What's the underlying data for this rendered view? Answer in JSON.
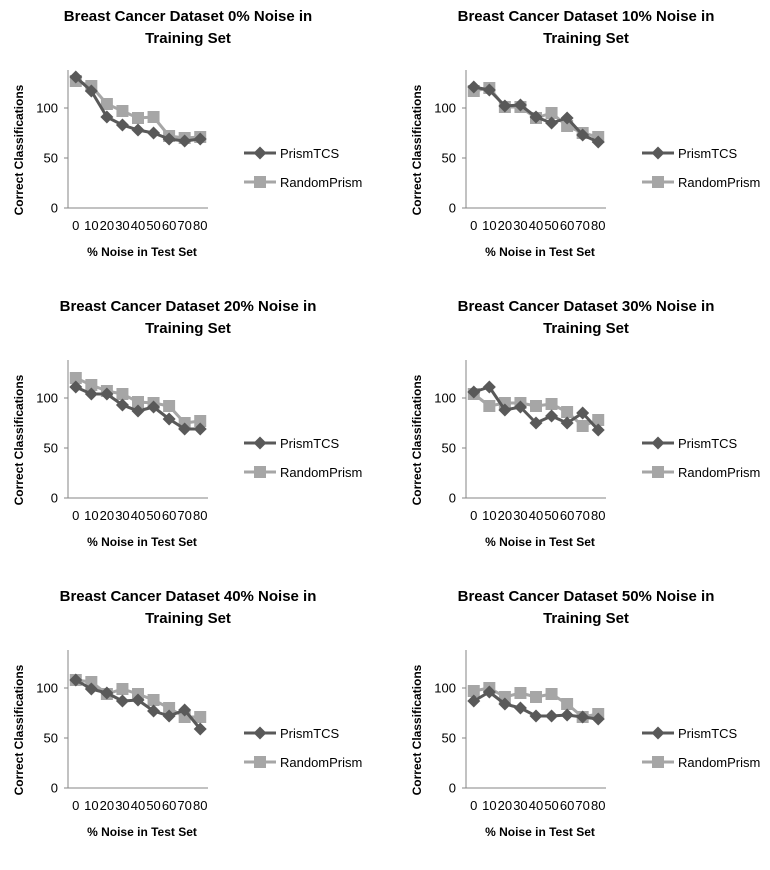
{
  "chart_data": [
    {
      "type": "line",
      "title_lines": [
        "Breast Cancer Dataset 0% Noise in",
        "Training Set"
      ],
      "xlabel": "% Noise in Test Set",
      "ylabel": "Correct Classifications",
      "categories": [
        "0",
        "10",
        "20",
        "30",
        "40",
        "50",
        "60",
        "70",
        "80"
      ],
      "ylim": [
        0,
        135
      ],
      "yticks": [
        "0",
        "50",
        "100"
      ],
      "legend_position": "right",
      "series": [
        {
          "name": "PrismTCS",
          "marker": "diamond",
          "color": "#595959",
          "values": [
            131,
            117,
            91,
            83,
            78,
            75,
            69,
            67,
            69
          ]
        },
        {
          "name": "RandomPrism",
          "marker": "square",
          "color": "#a6a6a6",
          "values": [
            127,
            122,
            104,
            97,
            90,
            91,
            72,
            70,
            71
          ]
        }
      ]
    },
    {
      "type": "line",
      "title_lines": [
        "Breast Cancer Dataset 10% Noise in",
        "Training Set"
      ],
      "xlabel": "% Noise in Test Set",
      "ylabel": "Correct Classifications",
      "categories": [
        "0",
        "10",
        "20",
        "30",
        "40",
        "50",
        "60",
        "70",
        "80"
      ],
      "ylim": [
        0,
        135
      ],
      "yticks": [
        "0",
        "50",
        "100"
      ],
      "legend_position": "right",
      "series": [
        {
          "name": "PrismTCS",
          "marker": "diamond",
          "color": "#595959",
          "values": [
            121,
            118,
            102,
            103,
            91,
            85,
            90,
            73,
            66
          ]
        },
        {
          "name": "RandomPrism",
          "marker": "square",
          "color": "#a6a6a6",
          "values": [
            117,
            120,
            101,
            101,
            90,
            95,
            82,
            75,
            71
          ]
        }
      ]
    },
    {
      "type": "line",
      "title_lines": [
        "Breast Cancer Dataset 20% Noise in",
        "Training Set"
      ],
      "xlabel": "% Noise in Test Set",
      "ylabel": "Correct Classifications",
      "categories": [
        "0",
        "10",
        "20",
        "30",
        "40",
        "50",
        "60",
        "70",
        "80"
      ],
      "ylim": [
        0,
        135
      ],
      "yticks": [
        "0",
        "50",
        "100"
      ],
      "legend_position": "right",
      "series": [
        {
          "name": "PrismTCS",
          "marker": "diamond",
          "color": "#595959",
          "values": [
            111,
            104,
            104,
            93,
            87,
            91,
            79,
            69,
            69
          ]
        },
        {
          "name": "RandomPrism",
          "marker": "square",
          "color": "#a6a6a6",
          "values": [
            120,
            113,
            107,
            104,
            96,
            95,
            92,
            75,
            77
          ]
        }
      ]
    },
    {
      "type": "line",
      "title_lines": [
        "Breast Cancer Dataset 30% Noise in",
        "Training Set"
      ],
      "xlabel": "% Noise in Test Set",
      "ylabel": "Correct Classifications",
      "categories": [
        "0",
        "10",
        "20",
        "30",
        "40",
        "50",
        "60",
        "70",
        "80"
      ],
      "ylim": [
        0,
        135
      ],
      "yticks": [
        "0",
        "50",
        "100"
      ],
      "legend_position": "right",
      "series": [
        {
          "name": "PrismTCS",
          "marker": "diamond",
          "color": "#595959",
          "values": [
            106,
            111,
            88,
            91,
            75,
            82,
            75,
            85,
            68
          ]
        },
        {
          "name": "RandomPrism",
          "marker": "square",
          "color": "#a6a6a6",
          "values": [
            104,
            92,
            95,
            95,
            92,
            94,
            86,
            72,
            78
          ]
        }
      ]
    },
    {
      "type": "line",
      "title_lines": [
        "Breast Cancer Dataset 40% Noise in",
        "Training Set"
      ],
      "xlabel": "% Noise in Test Set",
      "ylabel": "Correct Classifications",
      "categories": [
        "0",
        "10",
        "20",
        "30",
        "40",
        "50",
        "60",
        "70",
        "80"
      ],
      "ylim": [
        0,
        135
      ],
      "yticks": [
        "0",
        "50",
        "100"
      ],
      "legend_position": "right",
      "series": [
        {
          "name": "PrismTCS",
          "marker": "diamond",
          "color": "#595959",
          "values": [
            108,
            99,
            95,
            87,
            88,
            77,
            72,
            78,
            59
          ]
        },
        {
          "name": "RandomPrism",
          "marker": "square",
          "color": "#a6a6a6",
          "values": [
            108,
            106,
            94,
            99,
            94,
            88,
            80,
            71,
            71
          ]
        }
      ]
    },
    {
      "type": "line",
      "title_lines": [
        "Breast Cancer Dataset 50% Noise in",
        "Training Set"
      ],
      "xlabel": "% Noise in Test Set",
      "ylabel": "Correct Classifications",
      "categories": [
        "0",
        "10",
        "20",
        "30",
        "40",
        "50",
        "60",
        "70",
        "80"
      ],
      "ylim": [
        0,
        135
      ],
      "yticks": [
        "0",
        "50",
        "100"
      ],
      "legend_position": "right",
      "series": [
        {
          "name": "PrismTCS",
          "marker": "diamond",
          "color": "#595959",
          "values": [
            87,
            96,
            84,
            80,
            72,
            72,
            73,
            71,
            69
          ]
        },
        {
          "name": "RandomPrism",
          "marker": "square",
          "color": "#a6a6a6",
          "values": [
            97,
            100,
            91,
            95,
            91,
            94,
            84,
            71,
            74
          ]
        }
      ]
    }
  ]
}
